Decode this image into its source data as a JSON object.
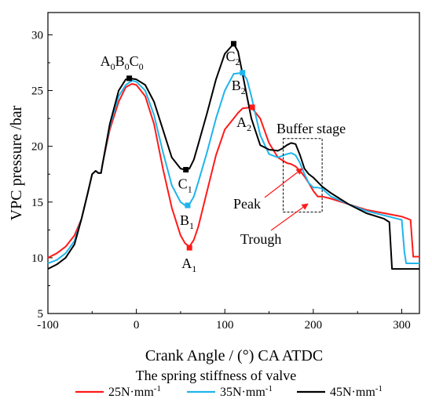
{
  "chart_data": {
    "type": "line",
    "xlabel": "Crank Angle / (°) CA ATDC",
    "ylabel": "VPC pressure /bar",
    "xlim": [
      -100,
      320
    ],
    "ylim": [
      5,
      32
    ],
    "xticks": [
      -100,
      0,
      100,
      200,
      300
    ],
    "yticks": [
      5,
      10,
      15,
      20,
      25,
      30
    ],
    "grid": false,
    "legend": {
      "title": "The spring stiffness of valve",
      "position": "bottom",
      "entries": [
        "25N·mm-1",
        "35N·mm-1",
        "45N·mm-1"
      ]
    },
    "colors": {
      "s25": "#ff1a1a",
      "s35": "#1fb4ec",
      "s45": "#000000"
    },
    "series": [
      {
        "name": "25N·mm-1",
        "color": "#ff1a1a",
        "x": [
          -100,
          -90,
          -80,
          -70,
          -62,
          -55,
          -50,
          -46,
          -43,
          -40,
          -38,
          -30,
          -20,
          -12,
          -5,
          0,
          10,
          20,
          30,
          40,
          50,
          55,
          60,
          65,
          70,
          80,
          90,
          100,
          110,
          115,
          120,
          130,
          140,
          150,
          160,
          170,
          175,
          180,
          185,
          190,
          195,
          200,
          205,
          210,
          220,
          240,
          260,
          280,
          300,
          310,
          313,
          320
        ],
        "y": [
          10,
          10.4,
          11,
          12,
          13.5,
          15.8,
          17.5,
          17.8,
          17.6,
          17.6,
          18.5,
          21.5,
          24,
          25.3,
          25.6,
          25.5,
          24.5,
          22,
          18,
          14.5,
          12,
          11.3,
          11,
          11.6,
          12.8,
          16,
          19.2,
          21.5,
          22.5,
          23,
          23.4,
          23.5,
          22.5,
          20.3,
          19,
          18.5,
          18.4,
          18.2,
          17.8,
          17.3,
          16.7,
          16,
          15.5,
          15.5,
          15.3,
          14.8,
          14.3,
          14,
          13.7,
          13.4,
          10.1,
          10.1
        ]
      },
      {
        "name": "35N·mm-1",
        "color": "#1fb4ec",
        "x": [
          -100,
          -90,
          -80,
          -70,
          -62,
          -55,
          -50,
          -46,
          -43,
          -40,
          -38,
          -30,
          -20,
          -12,
          -5,
          0,
          10,
          20,
          30,
          40,
          50,
          55,
          60,
          65,
          70,
          80,
          90,
          100,
          110,
          120,
          125,
          130,
          140,
          150,
          160,
          170,
          175,
          180,
          185,
          190,
          195,
          200,
          205,
          210,
          220,
          240,
          260,
          280,
          300,
          303,
          305,
          320
        ],
        "y": [
          9.5,
          9.8,
          10.4,
          11.5,
          13.5,
          15.8,
          17.5,
          17.8,
          17.6,
          17.6,
          18.5,
          21.8,
          24.5,
          25.5,
          25.9,
          25.8,
          25,
          22.8,
          19.5,
          16.5,
          15,
          14.7,
          14.8,
          15.5,
          16.8,
          19.5,
          22.5,
          25,
          26.5,
          26.6,
          26,
          24.5,
          21,
          19.3,
          19,
          19.3,
          19.4,
          19.2,
          18.5,
          17.5,
          16.7,
          16.3,
          16.3,
          16.2,
          15.5,
          14.8,
          14.2,
          13.8,
          13.4,
          10.5,
          9.5,
          9.5
        ]
      },
      {
        "name": "45N·mm-1",
        "color": "#000000",
        "x": [
          -100,
          -90,
          -80,
          -70,
          -62,
          -55,
          -50,
          -46,
          -43,
          -40,
          -38,
          -30,
          -20,
          -12,
          -8,
          0,
          10,
          20,
          30,
          40,
          50,
          55,
          60,
          65,
          70,
          80,
          90,
          100,
          110,
          115,
          120,
          130,
          140,
          150,
          160,
          165,
          170,
          175,
          180,
          185,
          190,
          195,
          200,
          205,
          210,
          220,
          240,
          260,
          280,
          286,
          289,
          320
        ],
        "y": [
          9,
          9.4,
          10,
          11.2,
          13.5,
          15.8,
          17.5,
          17.8,
          17.6,
          17.6,
          18.5,
          22,
          25,
          26,
          26.1,
          26,
          25.5,
          24,
          21.5,
          19,
          18,
          17.9,
          18,
          18.8,
          20.2,
          23,
          26,
          28.3,
          29.2,
          28.5,
          26.5,
          22.5,
          20.1,
          19.7,
          19.6,
          19.8,
          20.1,
          20.3,
          20.2,
          19.2,
          18,
          17.5,
          17.2,
          16.8,
          16.4,
          15.8,
          14.8,
          14,
          13.5,
          13.2,
          9,
          9
        ]
      }
    ],
    "points": [
      {
        "label": "A_0B_0C_0",
        "x": -8,
        "y": 26.1,
        "color": "#000000"
      },
      {
        "label": "A_1",
        "x": 60,
        "y": 10.9,
        "color": "#ff1a1a"
      },
      {
        "label": "B_1",
        "x": 58,
        "y": 14.7,
        "color": "#1fb4ec"
      },
      {
        "label": "C_1",
        "x": 56,
        "y": 17.9,
        "color": "#000000"
      },
      {
        "label": "A_2",
        "x": 131,
        "y": 23.5,
        "color": "#ff1a1a"
      },
      {
        "label": "B_2",
        "x": 120,
        "y": 26.6,
        "color": "#1fb4ec"
      },
      {
        "label": "C_2",
        "x": 110,
        "y": 29.2,
        "color": "#000000"
      }
    ],
    "annotations": {
      "buffer_stage": "Buffer stage",
      "peak": "Peak",
      "trough": "Trough"
    },
    "buffer_box": {
      "x": [
        166,
        210
      ],
      "y": [
        14.1,
        20.7
      ]
    }
  }
}
